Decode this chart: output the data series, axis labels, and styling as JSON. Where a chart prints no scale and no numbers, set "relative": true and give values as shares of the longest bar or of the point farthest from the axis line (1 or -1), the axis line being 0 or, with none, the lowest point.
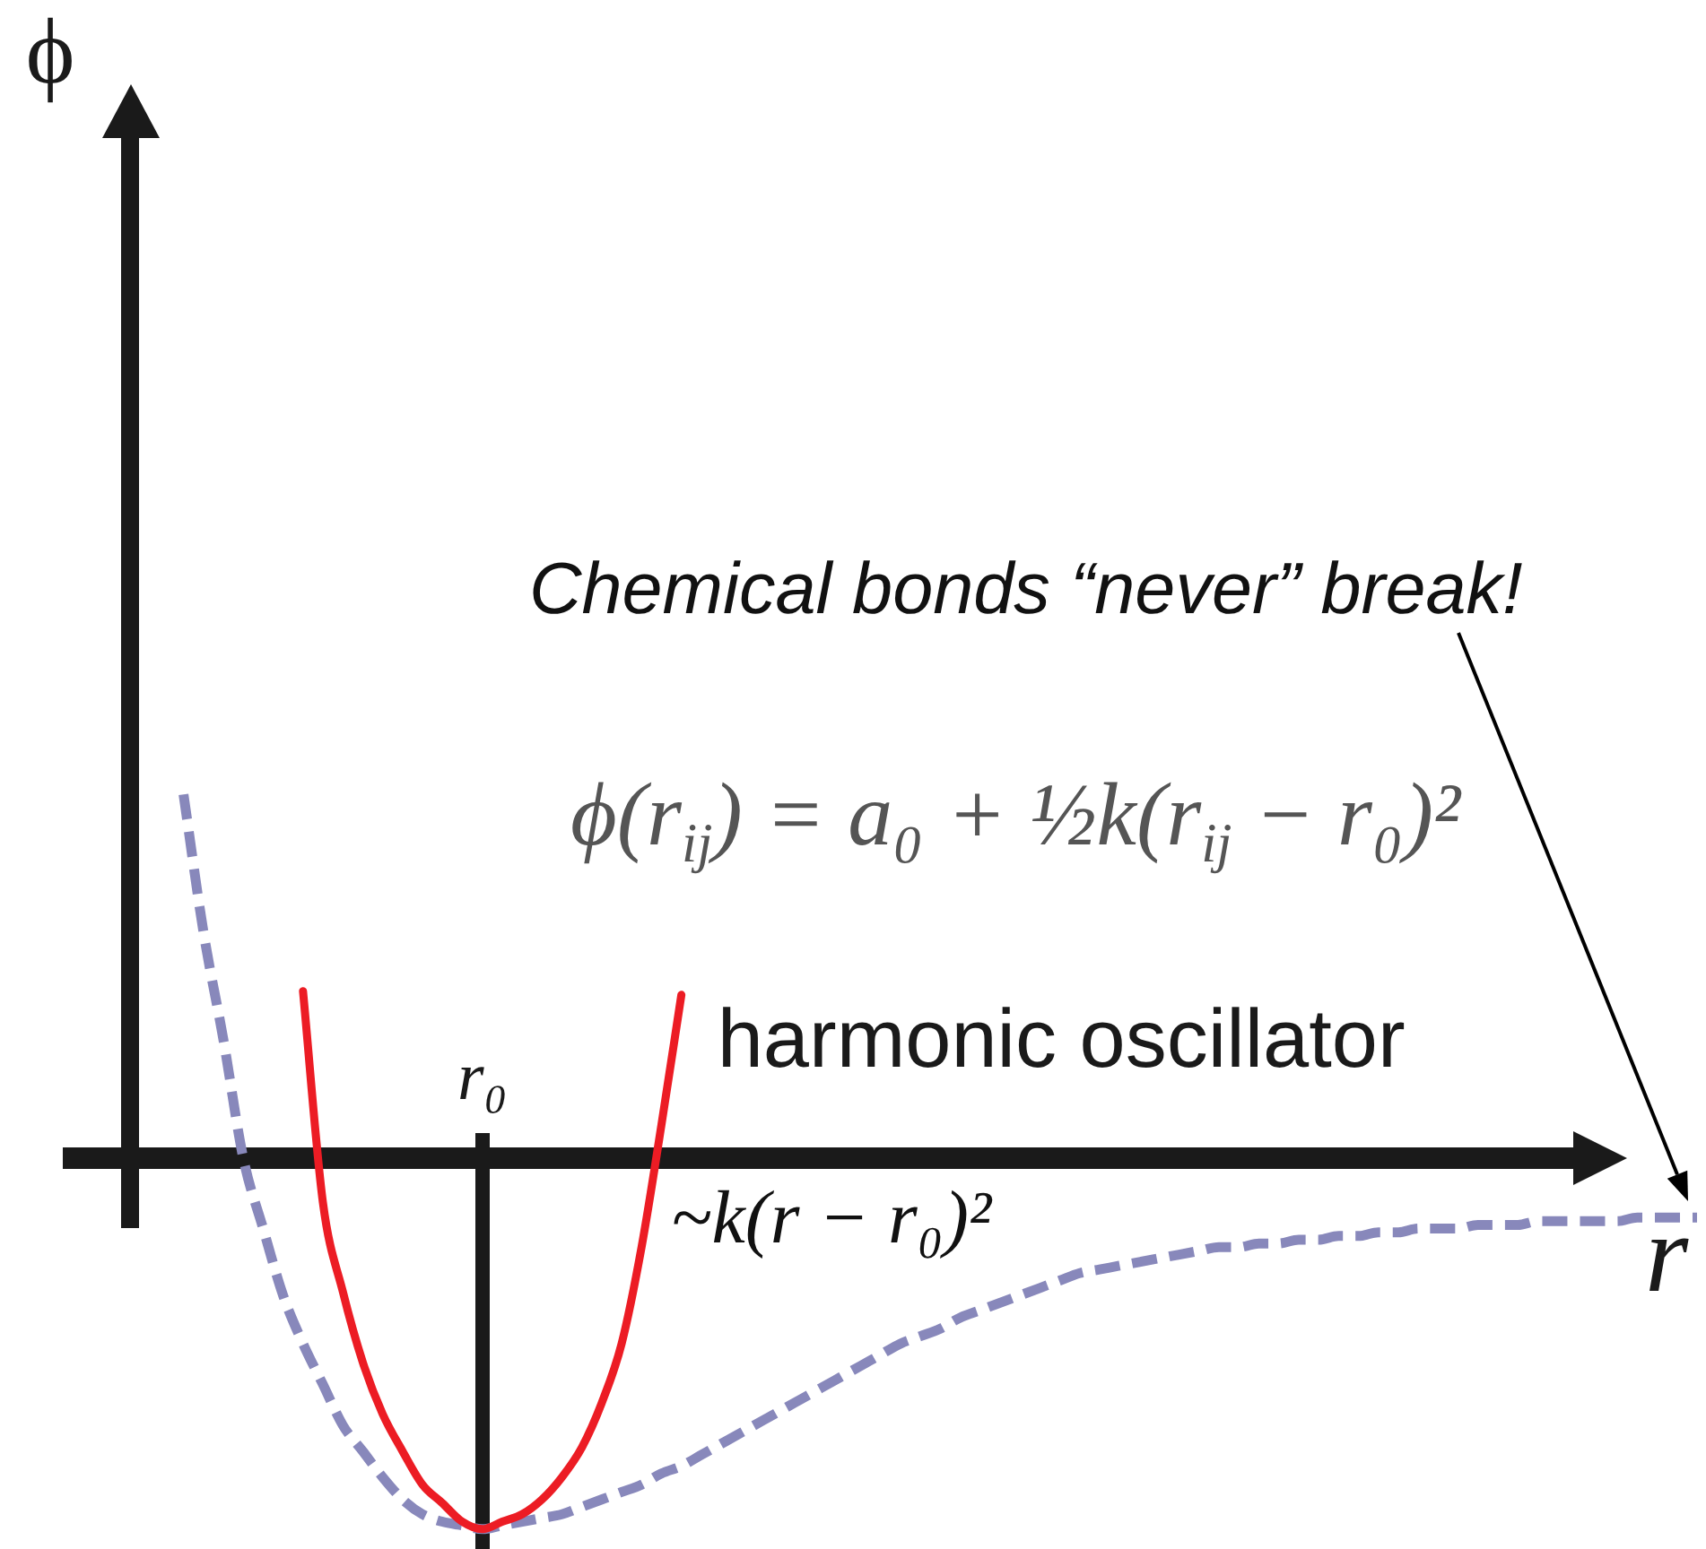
{
  "chart_data": {
    "type": "line",
    "relative": true,
    "xlabel": "r",
    "marker": "none",
    "annotations": [
      "ϕ",
      "Chemical bonds “never” break!",
      "ϕ(r$_{ij}$) = a₀ + ½k(r$_{ij}$ − r₀)²",
      "r₀",
      "~k(r − r₀)²"
    ],
    "categories": [
      null,
      null,
      null,
      null,
      null,
      null,
      null,
      null,
      null,
      null,
      null,
      null,
      null,
      null,
      null,
      null,
      null,
      null,
      null,
      null,
      null,
      null,
      null,
      null,
      null,
      null,
      null,
      null,
      null,
      null,
      null,
      null,
      null,
      null,
      null,
      null,
      null,
      null,
      null,
      null,
      null,
      null,
      null,
      null,
      null,
      null,
      null,
      null,
      null,
      null,
      null,
      null,
      null,
      null,
      null,
      null,
      null,
      null,
      null,
      null,
      null,
      null,
      null,
      null,
      null,
      null,
      null,
      null,
      null,
      null,
      null,
      null,
      null,
      null,
      null,
      null,
      null,
      null,
      null,
      null
    ],
    "series": [
      {
        "name": "harmonic oscillator",
        "color": "#ec1c24",
        "values": [
          null,
          null,
          null,
          null,
          null,
          null,
          null,
          null,
          null,
          0.45,
          -0.12,
          -0.36,
          -0.55,
          -0.69,
          -0.79,
          -0.88,
          -0.93,
          -0.98,
          -1.0,
          -0.98,
          -0.96,
          -0.92,
          -0.86,
          -0.78,
          -0.66,
          -0.5,
          -0.24,
          0.09,
          0.44,
          null,
          null,
          null,
          null,
          null,
          null,
          null,
          null,
          null,
          null,
          null,
          null,
          null,
          null,
          null,
          null,
          null,
          null,
          null,
          null,
          null,
          null,
          null,
          null,
          null,
          null,
          null,
          null,
          null,
          null,
          null,
          null,
          null,
          null,
          null,
          null,
          null,
          null,
          null,
          null,
          null,
          null,
          null,
          null,
          null,
          null,
          null,
          null,
          null,
          null,
          null
        ]
      },
      {
        "color": "#8888bb",
        "line_style": "dashed",
        "values": [
          null,
          null,
          null,
          0.98,
          0.61,
          0.32,
          0.0,
          -0.19,
          -0.37,
          -0.5,
          -0.61,
          -0.72,
          -0.79,
          -0.86,
          -0.92,
          -0.96,
          -0.98,
          -0.99,
          -1.0,
          -0.99,
          -0.98,
          -0.97,
          -0.96,
          -0.94,
          -0.92,
          -0.9,
          -0.88,
          -0.85,
          -0.83,
          -0.8,
          -0.77,
          -0.74,
          -0.71,
          -0.68,
          -0.65,
          -0.62,
          -0.59,
          -0.56,
          -0.53,
          -0.5,
          -0.48,
          -0.46,
          -0.43,
          -0.41,
          -0.39,
          -0.37,
          -0.35,
          -0.33,
          -0.31,
          -0.3,
          -0.29,
          -0.28,
          -0.27,
          -0.26,
          -0.25,
          -0.24,
          -0.24,
          -0.23,
          -0.23,
          -0.22,
          -0.22,
          -0.21,
          -0.21,
          -0.2,
          -0.2,
          -0.19,
          -0.19,
          -0.19,
          -0.18,
          -0.18,
          -0.18,
          -0.17,
          -0.17,
          -0.17,
          -0.17,
          -0.17,
          -0.16,
          -0.16,
          -0.16,
          -0.16
        ]
      }
    ]
  }
}
